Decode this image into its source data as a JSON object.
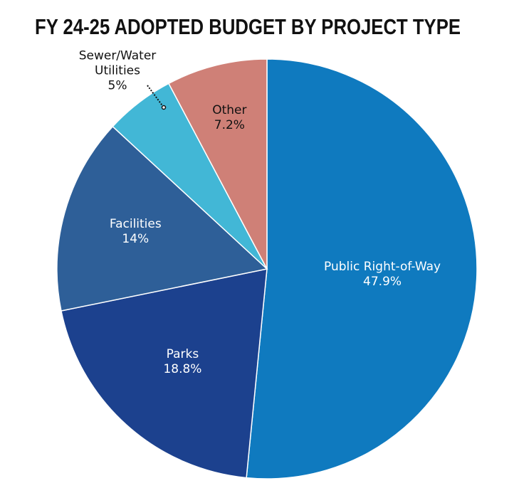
{
  "chart_data": {
    "type": "pie",
    "title": "FY 24-25 ADOPTED BUDGET BY PROJECT TYPE",
    "categories": [
      "Public Right-of-Way",
      "Parks",
      "Facilities",
      "Sewer/Water Utilities",
      "Other"
    ],
    "values": [
      47.9,
      18.8,
      14,
      5,
      7.2
    ],
    "value_labels": [
      "47.9%",
      "18.8%",
      "14%",
      "5%",
      "7.2%"
    ],
    "colors": [
      "#0f7abf",
      "#1c418e",
      "#2e5f98",
      "#42b7d6",
      "#cf8077"
    ]
  }
}
